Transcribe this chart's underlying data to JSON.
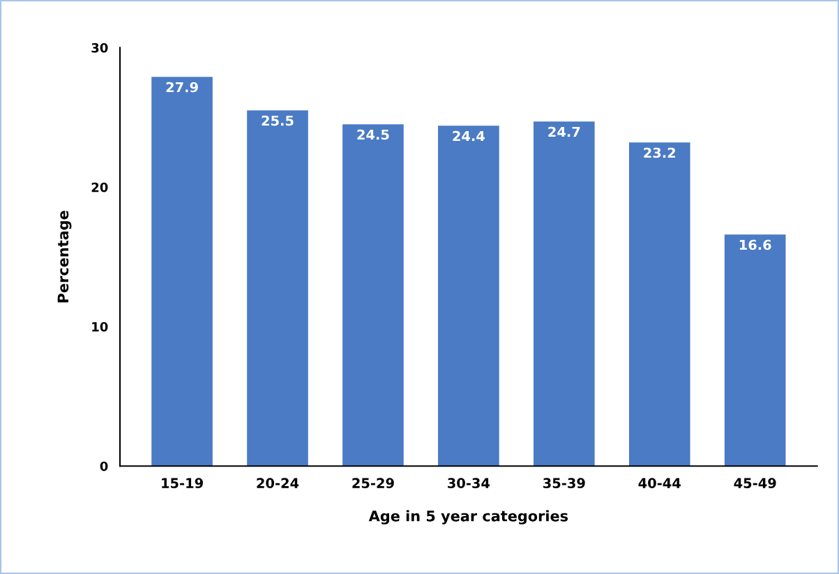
{
  "chart_data": {
    "type": "bar",
    "xlabel": "Age in 5 year categories",
    "ylabel": "Percentage",
    "categories": [
      "15-19",
      "20-24",
      "25-29",
      "30-34",
      "35-39",
      "40-44",
      "45-49"
    ],
    "values": [
      27.9,
      25.5,
      24.5,
      24.4,
      24.7,
      23.2,
      16.6
    ],
    "color": "#4a7bc4",
    "ylim": [
      0,
      30
    ],
    "yticks": [
      0,
      10,
      20,
      30
    ],
    "grid": false,
    "data_labels": true,
    "legend": false
  }
}
